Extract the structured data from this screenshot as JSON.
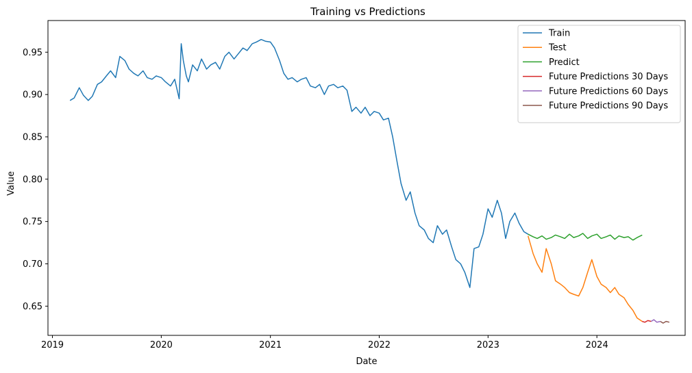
{
  "chart_data": {
    "type": "line",
    "title": "Training vs Predictions",
    "xlabel": "Date",
    "ylabel": "Value",
    "xlim": [
      "2018-12-17",
      "2024-10-23"
    ],
    "ylim": [
      0.6155,
      0.9874
    ],
    "grid": false,
    "legend_position": "top-right",
    "x_ticks": [
      {
        "value": "2019-01-01",
        "label": "2019"
      },
      {
        "value": "2020-01-01",
        "label": "2020"
      },
      {
        "value": "2021-01-01",
        "label": "2021"
      },
      {
        "value": "2022-01-01",
        "label": "2022"
      },
      {
        "value": "2023-01-01",
        "label": "2023"
      },
      {
        "value": "2024-01-01",
        "label": "2024"
      }
    ],
    "y_ticks": [
      {
        "value": 0.65,
        "label": "0.65"
      },
      {
        "value": 0.7,
        "label": "0.70"
      },
      {
        "value": 0.75,
        "label": "0.75"
      },
      {
        "value": 0.8,
        "label": "0.80"
      },
      {
        "value": 0.85,
        "label": "0.85"
      },
      {
        "value": 0.9,
        "label": "0.90"
      },
      {
        "value": 0.95,
        "label": "0.95"
      }
    ],
    "series": [
      {
        "name": "Train",
        "color": "#1f77b4",
        "x": [
          "2019-03-01",
          "2019-03-15",
          "2019-04-01",
          "2019-04-15",
          "2019-05-01",
          "2019-05-15",
          "2019-06-01",
          "2019-06-15",
          "2019-07-01",
          "2019-07-15",
          "2019-08-01",
          "2019-08-15",
          "2019-09-01",
          "2019-09-15",
          "2019-10-01",
          "2019-10-15",
          "2019-11-01",
          "2019-11-15",
          "2019-12-01",
          "2019-12-15",
          "2020-01-01",
          "2020-01-15",
          "2020-02-01",
          "2020-02-15",
          "2020-03-01",
          "2020-03-08",
          "2020-03-15",
          "2020-03-25",
          "2020-04-01",
          "2020-04-15",
          "2020-05-01",
          "2020-05-15",
          "2020-06-01",
          "2020-06-15",
          "2020-07-01",
          "2020-07-15",
          "2020-08-01",
          "2020-08-15",
          "2020-09-01",
          "2020-09-15",
          "2020-10-01",
          "2020-10-15",
          "2020-11-01",
          "2020-11-15",
          "2020-12-01",
          "2020-12-15",
          "2021-01-01",
          "2021-01-15",
          "2021-02-01",
          "2021-02-15",
          "2021-03-01",
          "2021-03-15",
          "2021-04-01",
          "2021-04-15",
          "2021-05-01",
          "2021-05-15",
          "2021-06-01",
          "2021-06-15",
          "2021-07-01",
          "2021-07-15",
          "2021-08-01",
          "2021-08-15",
          "2021-09-01",
          "2021-09-15",
          "2021-10-01",
          "2021-10-15",
          "2021-11-01",
          "2021-11-15",
          "2021-12-01",
          "2021-12-15",
          "2022-01-01",
          "2022-01-15",
          "2022-02-01",
          "2022-02-15",
          "2022-03-01",
          "2022-03-15",
          "2022-04-01",
          "2022-04-15",
          "2022-05-01",
          "2022-05-15",
          "2022-06-01",
          "2022-06-15",
          "2022-07-01",
          "2022-07-15",
          "2022-08-01",
          "2022-08-15",
          "2022-09-01",
          "2022-09-15",
          "2022-10-01",
          "2022-10-15",
          "2022-11-01",
          "2022-11-15",
          "2022-12-01",
          "2022-12-15",
          "2023-01-01",
          "2023-01-15",
          "2023-02-01",
          "2023-02-15",
          "2023-03-01",
          "2023-03-15",
          "2023-04-01",
          "2023-04-15",
          "2023-05-01",
          "2023-05-15"
        ],
        "y": [
          0.893,
          0.896,
          0.908,
          0.899,
          0.893,
          0.898,
          0.912,
          0.915,
          0.922,
          0.928,
          0.92,
          0.945,
          0.94,
          0.93,
          0.925,
          0.922,
          0.928,
          0.92,
          0.918,
          0.922,
          0.92,
          0.915,
          0.91,
          0.918,
          0.895,
          0.96,
          0.94,
          0.922,
          0.915,
          0.935,
          0.928,
          0.942,
          0.93,
          0.935,
          0.938,
          0.93,
          0.945,
          0.95,
          0.942,
          0.948,
          0.955,
          0.952,
          0.96,
          0.962,
          0.965,
          0.963,
          0.962,
          0.955,
          0.94,
          0.925,
          0.918,
          0.92,
          0.915,
          0.918,
          0.92,
          0.91,
          0.908,
          0.912,
          0.9,
          0.91,
          0.912,
          0.908,
          0.91,
          0.905,
          0.88,
          0.885,
          0.878,
          0.885,
          0.875,
          0.88,
          0.878,
          0.87,
          0.872,
          0.85,
          0.822,
          0.795,
          0.775,
          0.785,
          0.76,
          0.745,
          0.74,
          0.73,
          0.725,
          0.745,
          0.735,
          0.74,
          0.72,
          0.705,
          0.7,
          0.69,
          0.672,
          0.718,
          0.72,
          0.735,
          0.765,
          0.755,
          0.775,
          0.76,
          0.73,
          0.75,
          0.76,
          0.748,
          0.738,
          0.735
        ]
      },
      {
        "name": "Test",
        "color": "#ff7f0e",
        "x": [
          "2023-05-15",
          "2023-06-01",
          "2023-06-15",
          "2023-07-01",
          "2023-07-15",
          "2023-08-01",
          "2023-08-15",
          "2023-09-01",
          "2023-09-15",
          "2023-10-01",
          "2023-10-15",
          "2023-11-01",
          "2023-11-15",
          "2023-12-01",
          "2023-12-15",
          "2024-01-01",
          "2024-01-15",
          "2024-02-01",
          "2024-02-15",
          "2024-03-01",
          "2024-03-15",
          "2024-04-01",
          "2024-04-15",
          "2024-05-01",
          "2024-05-15",
          "2024-06-01"
        ],
        "y": [
          0.733,
          0.712,
          0.7,
          0.69,
          0.718,
          0.7,
          0.68,
          0.676,
          0.672,
          0.666,
          0.664,
          0.662,
          0.672,
          0.69,
          0.705,
          0.685,
          0.676,
          0.672,
          0.666,
          0.672,
          0.664,
          0.66,
          0.652,
          0.645,
          0.636,
          0.632
        ]
      },
      {
        "name": "Predict",
        "color": "#2ca02c",
        "x": [
          "2023-05-15",
          "2023-06-01",
          "2023-06-15",
          "2023-07-01",
          "2023-07-15",
          "2023-08-01",
          "2023-08-15",
          "2023-09-01",
          "2023-09-15",
          "2023-10-01",
          "2023-10-15",
          "2023-11-01",
          "2023-11-15",
          "2023-12-01",
          "2023-12-15",
          "2024-01-01",
          "2024-01-15",
          "2024-02-01",
          "2024-02-15",
          "2024-03-01",
          "2024-03-15",
          "2024-04-01",
          "2024-04-15",
          "2024-05-01",
          "2024-05-15",
          "2024-06-01"
        ],
        "y": [
          0.735,
          0.732,
          0.73,
          0.733,
          0.729,
          0.731,
          0.734,
          0.732,
          0.73,
          0.735,
          0.731,
          0.733,
          0.736,
          0.73,
          0.733,
          0.735,
          0.73,
          0.732,
          0.734,
          0.729,
          0.733,
          0.731,
          0.732,
          0.728,
          0.731,
          0.734
        ]
      },
      {
        "name": "Future Predictions 30 Days",
        "color": "#d62728",
        "x": [
          "2024-06-01",
          "2024-06-10",
          "2024-06-20",
          "2024-07-01"
        ],
        "y": [
          0.632,
          0.631,
          0.633,
          0.632
        ]
      },
      {
        "name": "Future Predictions 60 Days",
        "color": "#9467bd",
        "x": [
          "2024-07-01",
          "2024-07-10",
          "2024-07-20",
          "2024-08-01"
        ],
        "y": [
          0.632,
          0.634,
          0.631,
          0.632
        ]
      },
      {
        "name": "Future Predictions 90 Days",
        "color": "#8c564b",
        "x": [
          "2024-08-01",
          "2024-08-10",
          "2024-08-20",
          "2024-08-31"
        ],
        "y": [
          0.632,
          0.63,
          0.632,
          0.631
        ]
      }
    ]
  }
}
